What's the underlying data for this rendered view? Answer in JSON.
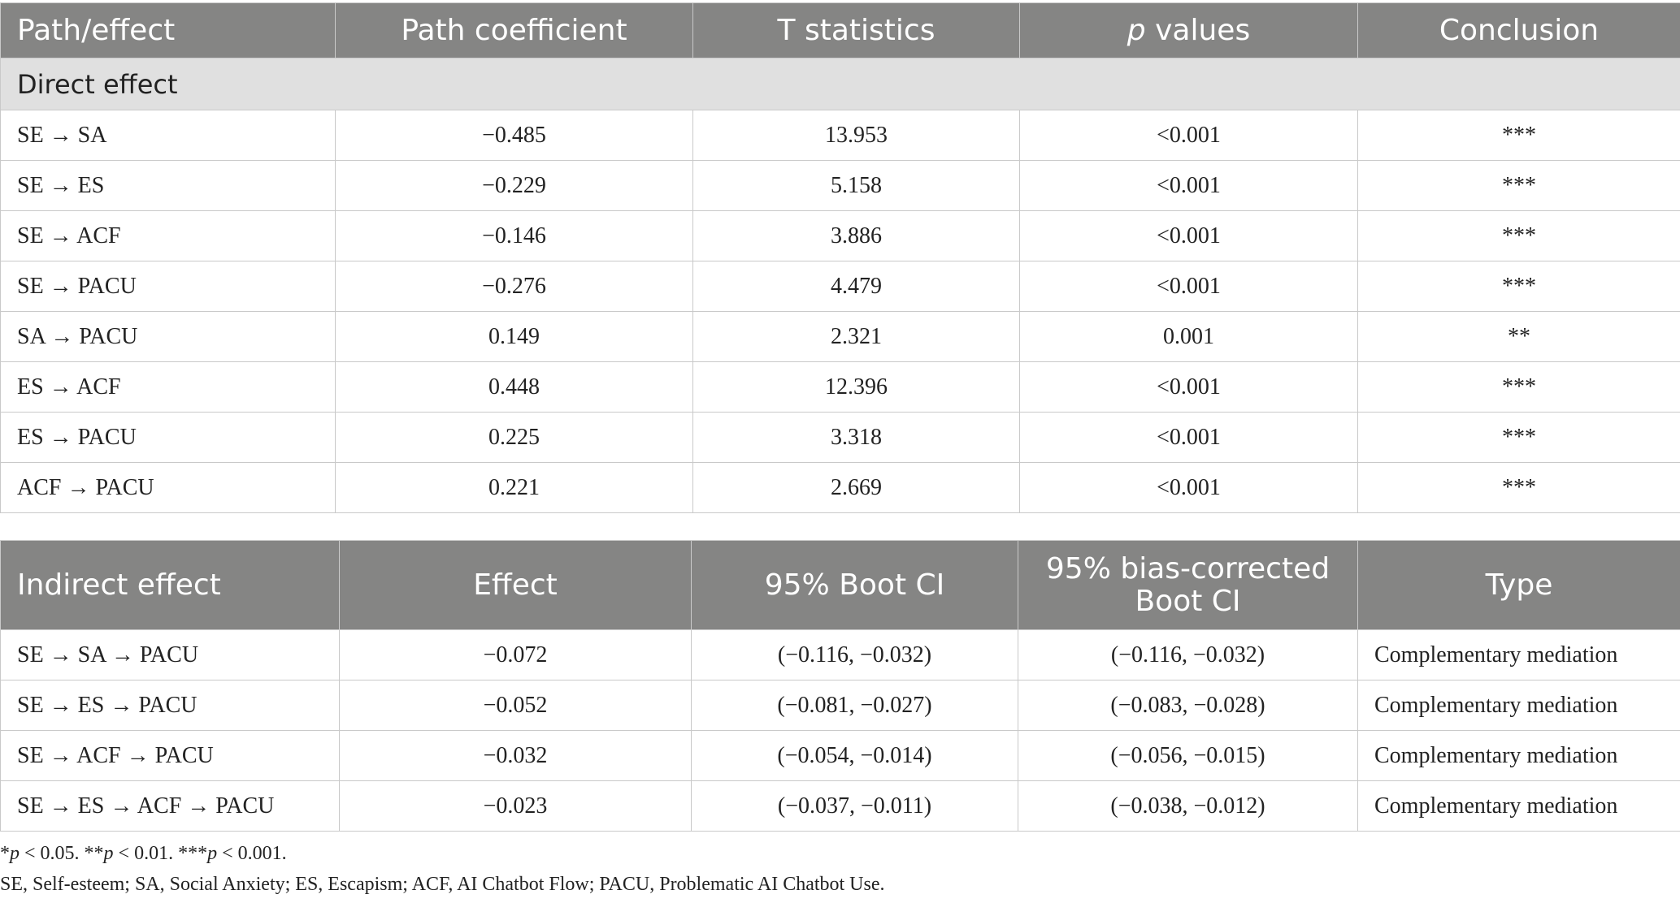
{
  "direct_table": {
    "headers": [
      "Path/effect",
      "Path coefficient",
      "T statistics",
      "values",
      "Conclusion"
    ],
    "p_values_header_italic": "p",
    "section_label": "Direct effect",
    "rows": [
      [
        "SE → SA",
        "−0.485",
        "13.953",
        "<0.001",
        "***"
      ],
      [
        "SE → ES",
        "−0.229",
        "5.158",
        "<0.001",
        "***"
      ],
      [
        "SE → ACF",
        "−0.146",
        "3.886",
        "<0.001",
        "***"
      ],
      [
        "SE → PACU",
        "−0.276",
        "4.479",
        "<0.001",
        "***"
      ],
      [
        "SA → PACU",
        "0.149",
        "2.321",
        "0.001",
        "**"
      ],
      [
        "ES → ACF",
        "0.448",
        "12.396",
        "<0.001",
        "***"
      ],
      [
        "ES → PACU",
        "0.225",
        "3.318",
        "<0.001",
        "***"
      ],
      [
        "ACF → PACU",
        "0.221",
        "2.669",
        "<0.001",
        "***"
      ]
    ]
  },
  "indirect_table": {
    "headers": [
      "Indirect effect",
      "Effect",
      "95% Boot CI",
      "95% bias-corrected Boot CI",
      "Type"
    ],
    "rows": [
      [
        "SE → SA → PACU",
        "−0.072",
        "(−0.116, −0.032)",
        "(−0.116, −0.032)",
        "Complementary mediation"
      ],
      [
        "SE → ES → PACU",
        "−0.052",
        "(−0.081, −0.027)",
        "(−0.083, −0.028)",
        "Complementary mediation"
      ],
      [
        "SE → ACF → PACU",
        "−0.032",
        "(−0.054, −0.014)",
        "(−0.056, −0.015)",
        "Complementary mediation"
      ],
      [
        "SE → ES → ACF → PACU",
        "−0.023",
        "(−0.037, −0.011)",
        "(−0.038, −0.012)",
        "Complementary mediation"
      ]
    ]
  },
  "notes": {
    "significance": {
      "p": "p",
      "s1": " < 0.05. **",
      "s2": " < 0.01. ***",
      "s3": " < 0.001.",
      "star": "*"
    },
    "abbreviations": "SE, Self-esteem; SA, Social Anxiety; ES, Escapism; ACF, AI Chatbot Flow; PACU, Problematic AI Chatbot Use."
  }
}
